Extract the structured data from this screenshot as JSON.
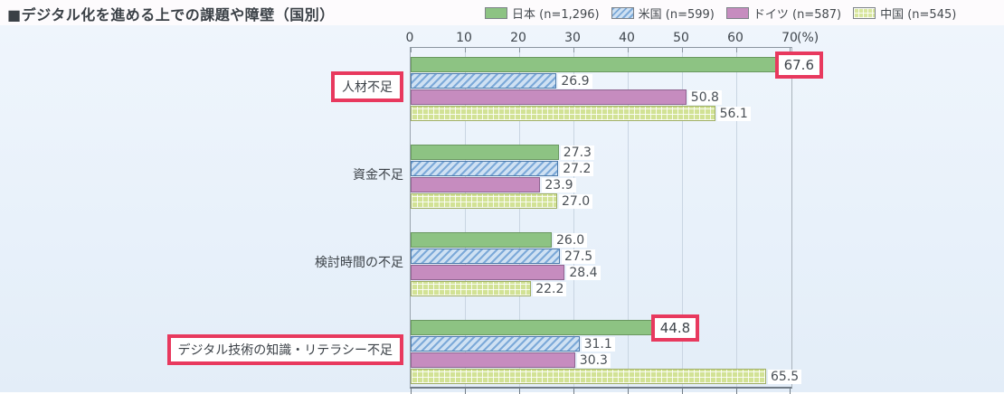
{
  "title": "■デジタル化を進める上での課題や障壁（国別）",
  "colors": {
    "highlight": "#e8395e",
    "japan": "#8dc383",
    "usa": "#7ca9d8",
    "germany": "#c68cbf",
    "china": "#d2e295",
    "chart_background": "#e9f1fa"
  },
  "chart_data": {
    "type": "bar",
    "orientation": "horizontal",
    "title": "デジタル化を進める上での課題や障壁（国別）",
    "categories": [
      "人材不足",
      "資金不足",
      "検討時間の不足",
      "デジタル技術の知識・リテラシー不足"
    ],
    "series": [
      {
        "name": "日本 (n=1,296)",
        "color_key": "japan",
        "values": [
          67.6,
          27.3,
          26.0,
          44.8
        ]
      },
      {
        "name": "米国 (n=599)",
        "color_key": "usa",
        "values": [
          26.9,
          27.2,
          27.5,
          31.1
        ]
      },
      {
        "name": "ドイツ (n=587)",
        "color_key": "germany",
        "values": [
          50.8,
          23.9,
          28.4,
          30.3
        ]
      },
      {
        "name": "中国 (n=545)",
        "color_key": "china",
        "values": [
          56.1,
          27.0,
          22.2,
          65.5
        ]
      }
    ],
    "xlim": [
      0,
      70
    ],
    "xticks": [
      0,
      10,
      20,
      30,
      40,
      50,
      60,
      70
    ],
    "x_unit": "(%)",
    "grid": true,
    "legend_position": "top-right",
    "highlights": {
      "category_indexes": [
        0,
        3
      ],
      "value_marks": [
        {
          "category_index": 0,
          "series_index": 0,
          "value": 67.6
        },
        {
          "category_index": 3,
          "series_index": 0,
          "value": 44.8
        }
      ]
    }
  }
}
